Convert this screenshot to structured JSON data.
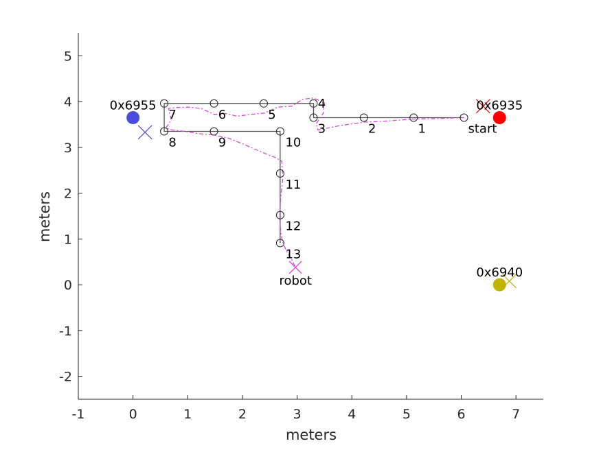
{
  "chart_data": {
    "type": "scatter",
    "xlabel": "meters",
    "ylabel": "meters",
    "xlim": [
      -1,
      7.5
    ],
    "ylim": [
      -2.5,
      5.5
    ],
    "xticks": [
      -1,
      0,
      1,
      2,
      3,
      4,
      5,
      6,
      7
    ],
    "yticks": [
      -2,
      -1,
      0,
      1,
      2,
      3,
      4,
      5
    ],
    "grid": false,
    "waypoints": [
      {
        "label": "start",
        "x": 6.05,
        "y": 3.65
      },
      {
        "label": "1",
        "x": 5.13,
        "y": 3.65
      },
      {
        "label": "2",
        "x": 4.22,
        "y": 3.65
      },
      {
        "label": "3",
        "x": 3.3,
        "y": 3.65
      },
      {
        "label": "4",
        "x": 3.3,
        "y": 3.96
      },
      {
        "label": "5",
        "x": 2.39,
        "y": 3.96
      },
      {
        "label": "6",
        "x": 1.48,
        "y": 3.96
      },
      {
        "label": "7",
        "x": 0.57,
        "y": 3.96
      },
      {
        "label": "8",
        "x": 0.57,
        "y": 3.35
      },
      {
        "label": "9",
        "x": 1.48,
        "y": 3.35
      },
      {
        "label": "10",
        "x": 2.69,
        "y": 3.35
      },
      {
        "label": "11",
        "x": 2.69,
        "y": 2.43
      },
      {
        "label": "12",
        "x": 2.69,
        "y": 1.52
      },
      {
        "label": "13",
        "x": 2.69,
        "y": 0.91
      }
    ],
    "anchors": [
      {
        "label": "0x6955",
        "x": 0.0,
        "y": 3.65,
        "color": "#4b4bdc",
        "estimate": {
          "x": 0.22,
          "y": 3.33
        }
      },
      {
        "label": "0x6935",
        "x": 6.7,
        "y": 3.65,
        "color": "#ff0000",
        "estimate": {
          "x": 6.4,
          "y": 3.9
        }
      },
      {
        "label": "0x6940",
        "x": 6.7,
        "y": 0.0,
        "color": "#c0b400",
        "estimate": {
          "x": 6.88,
          "y": 0.08
        }
      }
    ],
    "robot": {
      "label": "robot",
      "x": 2.97,
      "y": 0.38,
      "color": "#e040e0"
    },
    "trajectory": {
      "color": "#e040e0",
      "x": [
        6.05,
        5.6,
        5.13,
        4.7,
        4.22,
        3.8,
        3.55,
        3.38,
        3.35,
        3.48,
        3.5,
        3.3,
        3.1,
        2.9,
        2.65,
        2.4,
        2.15,
        1.9,
        1.7,
        1.48,
        1.25,
        1.0,
        0.8,
        0.65,
        0.7,
        0.6,
        0.72,
        0.95,
        1.2,
        1.48,
        1.75,
        2.0,
        2.25,
        2.45,
        2.6,
        2.72,
        2.74,
        2.7,
        2.68,
        2.7,
        2.73,
        2.8,
        2.9,
        2.97
      ],
      "y": [
        3.65,
        3.63,
        3.62,
        3.58,
        3.55,
        3.48,
        3.42,
        3.38,
        3.52,
        3.75,
        3.97,
        4.08,
        4.05,
        3.9,
        3.88,
        3.75,
        3.72,
        3.68,
        3.74,
        3.72,
        3.85,
        3.88,
        3.87,
        3.85,
        3.6,
        3.42,
        3.38,
        3.35,
        3.3,
        3.27,
        3.2,
        3.08,
        2.95,
        2.85,
        2.78,
        2.7,
        2.35,
        1.9,
        1.5,
        1.15,
        0.95,
        0.75,
        0.55,
        0.38
      ]
    }
  }
}
